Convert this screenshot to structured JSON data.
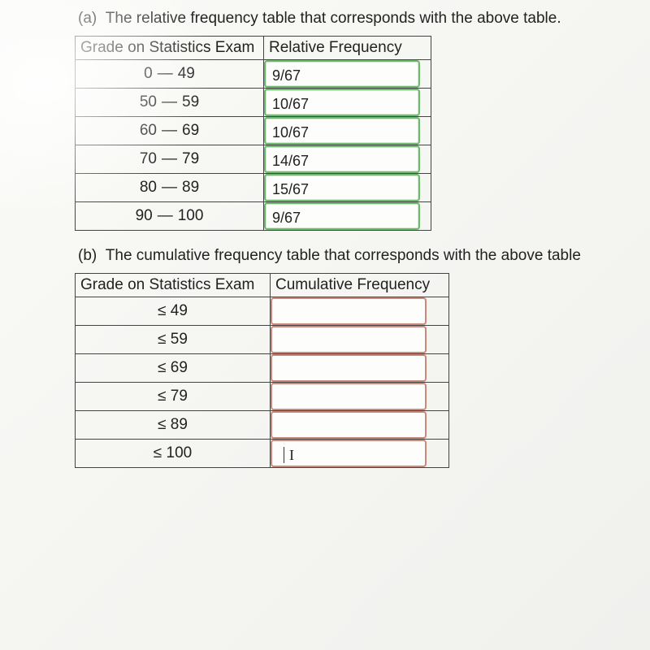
{
  "partA": {
    "prompt": "(a)  The relative frequency table that corresponds with the above table.",
    "columns": [
      "Grade on Statistics Exam",
      "Relative Frequency"
    ],
    "rows": [
      {
        "range_low": "0",
        "range_high": "49",
        "value": "9/67",
        "state": "correct"
      },
      {
        "range_low": "50",
        "range_high": "59",
        "value": "10/67",
        "state": "correct"
      },
      {
        "range_low": "60",
        "range_high": "69",
        "value": "10/67",
        "state": "correct"
      },
      {
        "range_low": "70",
        "range_high": "79",
        "value": "14/67",
        "state": "correct"
      },
      {
        "range_low": "80",
        "range_high": "89",
        "value": "15/67",
        "state": "correct"
      },
      {
        "range_low": "90",
        "range_high": "100",
        "value": "9/67",
        "state": "correct"
      }
    ]
  },
  "partB": {
    "prompt": "(b)  The cumulative frequency table that corresponds with the above table",
    "columns": [
      "Grade on Statistics Exam",
      "Cumulative Frequency"
    ],
    "leq_symbol": "≤",
    "rows": [
      {
        "bound": "49",
        "value": "",
        "state": "pending"
      },
      {
        "bound": "59",
        "value": "",
        "state": "pending"
      },
      {
        "bound": "69",
        "value": "",
        "state": "pending"
      },
      {
        "bound": "79",
        "value": "",
        "state": "pending"
      },
      {
        "bound": "89",
        "value": "",
        "state": "pending"
      },
      {
        "bound": "100",
        "value": "",
        "state": "active"
      }
    ]
  },
  "style": {
    "border_color": "#444444",
    "text_color": "#222222",
    "correct_border": "#6fb86f",
    "pending_border": "#c88a7a",
    "background": "#f5f5f2",
    "fontsize_body": 19,
    "fontsize_input": 18,
    "table_a_col_widths": [
      232,
      206
    ],
    "table_b_col_widths": [
      240,
      220
    ],
    "input_box_height": 34,
    "input_box_radius": 4
  }
}
